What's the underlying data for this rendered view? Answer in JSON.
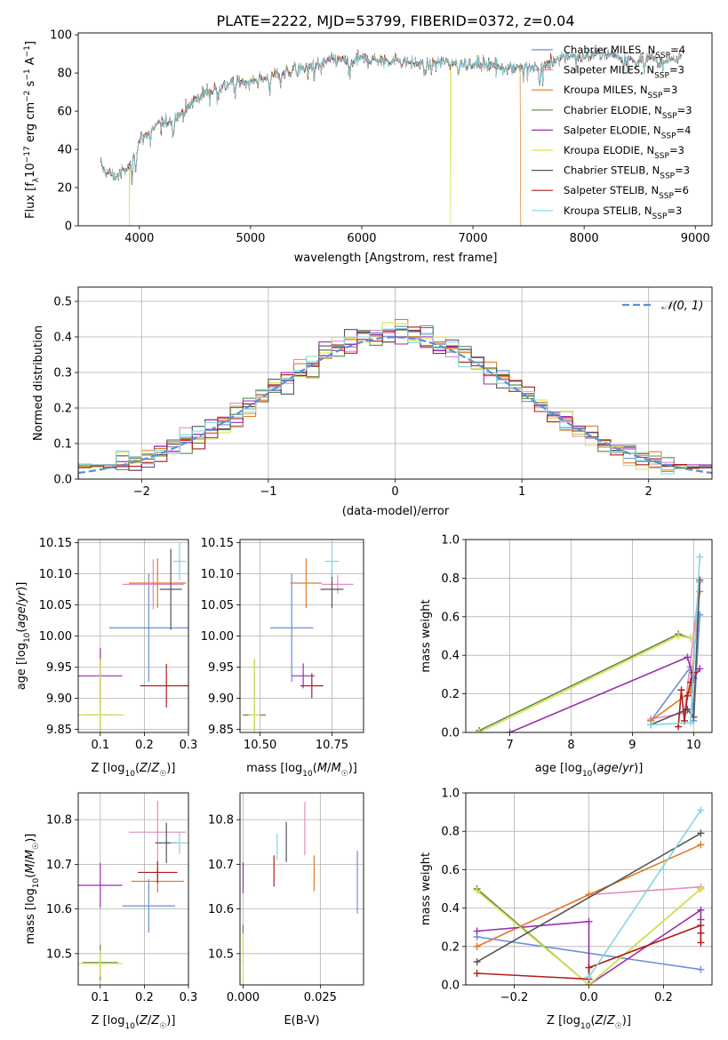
{
  "figure_title": "PLATE=2222, MJD=53799, FIBERID=0372, z=0.04",
  "colors": {
    "Chabrier MILES": "#6a8fd8",
    "Salpeter MILES": "#e68ac3",
    "Kroupa MILES": "#e07b27",
    "Chabrier ELODIE": "#5a8a4a",
    "Salpeter ELODIE": "#9a2fae",
    "Kroupa ELODIE": "#d9e34a",
    "Chabrier STELIB": "#555555",
    "Salpeter STELIB": "#b01c1c",
    "Kroupa STELIB": "#7fd8de"
  },
  "chart_data": [
    {
      "id": "spectrum",
      "type": "line",
      "title": "PLATE=2222, MJD=53799, FIBERID=0372, z=0.04",
      "xlabel": "wavelength [Angstrom, rest frame]",
      "ylabel": "Flux [f_λ 10^-17 erg cm^-2 s^-1 A^-1]",
      "xlim": [
        3450,
        9150
      ],
      "ylim": [
        0,
        101
      ],
      "xticks": [
        4000,
        5000,
        6000,
        7000,
        8000,
        9000
      ],
      "yticks": [
        0,
        20,
        40,
        60,
        80,
        100
      ],
      "legend_position": "right",
      "legend": [
        "Chabrier MILES, N_SSP=4",
        "Salpeter MILES, N_SSP=3",
        "Kroupa MILES, N_SSP=3",
        "Chabrier ELODIE, N_SSP=3",
        "Salpeter ELODIE, N_SSP=4",
        "Kroupa ELODIE, N_SSP=3",
        "Chabrier STELIB, N_SSP=3",
        "Salpeter STELIB, N_SSP=6",
        "Kroupa STELIB, N_SSP=3"
      ],
      "continuum": {
        "x": [
          3650,
          3700,
          3800,
          3900,
          3950,
          4000,
          4100,
          4200,
          4300,
          4400,
          4500,
          4600,
          4700,
          4800,
          4900,
          5000,
          5100,
          5200,
          5300,
          5400,
          5500,
          5600,
          5700,
          5800,
          5900,
          6000,
          6100,
          6200,
          6300,
          6400,
          6500,
          6600,
          6700,
          6800,
          6900,
          7000,
          7100,
          7200,
          7300,
          7400,
          7500,
          7600,
          7700,
          7800,
          7900,
          8000,
          8100,
          8200,
          8300,
          8400,
          8500,
          8600,
          8700,
          8800,
          8900
        ],
        "y": [
          32,
          28,
          26,
          30,
          38,
          45,
          50,
          54,
          56,
          60,
          66,
          70,
          72,
          74,
          76,
          75,
          77,
          79,
          80,
          82,
          83,
          84,
          86,
          87,
          86,
          88,
          87,
          86,
          87,
          86,
          85,
          84,
          86,
          85,
          86,
          84,
          85,
          84,
          83,
          84,
          82,
          83,
          86,
          88,
          89,
          88,
          90,
          91,
          89,
          87,
          86,
          88,
          87,
          88,
          87
        ]
      },
      "drops_to_zero": [
        {
          "model": "Kroupa ELODIE",
          "x": 3910
        },
        {
          "model": "Kroupa ELODIE",
          "x": 6800
        },
        {
          "model": "Kroupa MILES",
          "x": 7430
        }
      ],
      "spectrum_end": {
        "x": 9150
      }
    },
    {
      "id": "residuals",
      "type": "histogram",
      "xlabel": "(data-model)/error",
      "ylabel": "Normed distribution",
      "xlim": [
        -2.5,
        2.5
      ],
      "ylim": [
        0,
        0.54
      ],
      "xticks": [
        -2,
        -1,
        0,
        1,
        2
      ],
      "yticks": [
        0.0,
        0.1,
        0.2,
        0.3,
        0.4,
        0.5
      ],
      "grid": true,
      "legend": "𝒩(0, 1)",
      "legend_position": "top-right",
      "reference_curve": "standard normal pdf (dashed)",
      "bins": [
        -2.5,
        2.5,
        50
      ]
    },
    {
      "id": "age_vs_Z",
      "type": "errorbar",
      "xlabel": "Z [log10(Z/Z☉)]",
      "ylabel": "age  [log10(age/yr)]",
      "xlim": [
        0.05,
        0.3
      ],
      "ylim": [
        9.845,
        10.155
      ],
      "xticks": [
        0.1,
        0.2,
        0.3
      ],
      "yticks": [
        9.85,
        9.9,
        9.95,
        10.0,
        10.05,
        10.1,
        10.15
      ],
      "grid": true,
      "points": [
        {
          "model": "Chabrier MILES",
          "x": 0.21,
          "y": 10.013,
          "xerr": 0.09,
          "yerr": 0.087
        },
        {
          "model": "Salpeter MILES",
          "x": 0.22,
          "y": 10.083,
          "xerr": 0.07,
          "yerr": 0.04
        },
        {
          "model": "Kroupa MILES",
          "x": 0.23,
          "y": 10.085,
          "xerr": 0.065,
          "yerr": 0.04
        },
        {
          "model": "Chabrier ELODIE",
          "x": 0.1,
          "y": 9.873,
          "xerr": 0.04,
          "yerr": 0.09
        },
        {
          "model": "Salpeter ELODIE",
          "x": 0.1,
          "y": 9.936,
          "xerr": 0.05,
          "yerr": 0.045
        },
        {
          "model": "Kroupa ELODIE",
          "x": 0.1,
          "y": 9.873,
          "xerr": 0.055,
          "yerr": 0.09
        },
        {
          "model": "Chabrier STELIB",
          "x": 0.26,
          "y": 10.075,
          "xerr": 0.025,
          "yerr": 0.065
        },
        {
          "model": "Salpeter STELIB",
          "x": 0.25,
          "y": 9.92,
          "xerr": 0.06,
          "yerr": 0.035
        },
        {
          "model": "Kroupa STELIB",
          "x": 0.28,
          "y": 10.12,
          "xerr": 0.015,
          "yerr": 0.03
        }
      ]
    },
    {
      "id": "age_vs_mass",
      "type": "errorbar",
      "xlabel": "mass [log10(M/M☉)]",
      "ylabel": "",
      "xlim": [
        10.43,
        10.86
      ],
      "ylim": [
        9.845,
        10.155
      ],
      "xticks": [
        10.5,
        10.75
      ],
      "yticks": [
        9.85,
        9.9,
        9.95,
        10.0,
        10.05,
        10.1,
        10.15
      ],
      "grid": true,
      "points": [
        {
          "model": "Chabrier MILES",
          "x": 10.61,
          "y": 10.013,
          "xerr": 0.075,
          "yerr": 0.087
        },
        {
          "model": "Salpeter MILES",
          "x": 10.77,
          "y": 10.083,
          "xerr": 0.055,
          "yerr": 0.015
        },
        {
          "model": "Kroupa MILES",
          "x": 10.66,
          "y": 10.085,
          "xerr": 0.055,
          "yerr": 0.04
        },
        {
          "model": "Chabrier ELODIE",
          "x": 10.48,
          "y": 9.873,
          "xerr": 0.04,
          "yerr": 0.09
        },
        {
          "model": "Salpeter ELODIE",
          "x": 10.65,
          "y": 9.936,
          "xerr": 0.04,
          "yerr": 0.02
        },
        {
          "model": "Kroupa ELODIE",
          "x": 10.48,
          "y": 9.873,
          "xerr": 0.02,
          "yerr": 0.09
        },
        {
          "model": "Chabrier STELIB",
          "x": 10.75,
          "y": 10.075,
          "xerr": 0.04,
          "yerr": 0.03
        },
        {
          "model": "Salpeter STELIB",
          "x": 10.68,
          "y": 9.92,
          "xerr": 0.04,
          "yerr": 0.02
        },
        {
          "model": "Kroupa STELIB",
          "x": 10.75,
          "y": 10.12,
          "xerr": 0.025,
          "yerr": 0.025
        }
      ]
    },
    {
      "id": "weight_vs_age",
      "type": "line",
      "xlabel": "age  [log10(age/yr)]",
      "ylabel": "mass weight",
      "xlim": [
        6.28,
        10.3
      ],
      "ylim": [
        0,
        1.0
      ],
      "xticks": [
        7,
        8,
        9,
        10
      ],
      "yticks": [
        0.0,
        0.2,
        0.4,
        0.6,
        0.8,
        1.0
      ],
      "grid": true,
      "series": [
        {
          "name": "Chabrier MILES",
          "x": [
            9.3,
            9.95,
            10.0,
            10.1
          ],
          "y": [
            0.06,
            0.34,
            0.06,
            0.61
          ]
        },
        {
          "name": "Salpeter MILES",
          "x": [
            9.3,
            9.85,
            10.1
          ],
          "y": [
            0.07,
            0.1,
            0.78
          ]
        },
        {
          "name": "Kroupa MILES",
          "x": [
            9.3,
            9.95,
            10.1
          ],
          "y": [
            0.06,
            0.21,
            0.73
          ]
        },
        {
          "name": "Chabrier ELODIE",
          "x": [
            6.5,
            9.75,
            9.95
          ],
          "y": [
            0.01,
            0.51,
            0.49
          ]
        },
        {
          "name": "Salpeter ELODIE",
          "x": [
            7.0,
            9.9,
            10.0,
            10.1
          ],
          "y": [
            0.0,
            0.39,
            0.28,
            0.33
          ]
        },
        {
          "name": "Kroupa ELODIE",
          "x": [
            6.5,
            9.75,
            9.95
          ],
          "y": [
            0.0,
            0.5,
            0.49
          ]
        },
        {
          "name": "Chabrier STELIB",
          "x": [
            9.3,
            9.9,
            10.0,
            10.1
          ],
          "y": [
            0.04,
            0.12,
            0.08,
            0.79
          ]
        },
        {
          "name": "Salpeter STELIB",
          "x": [
            9.75,
            9.8,
            9.85,
            9.9,
            9.95,
            10.0
          ],
          "y": [
            0.03,
            0.22,
            0.06,
            0.19,
            0.26,
            0.31
          ]
        },
        {
          "name": "Kroupa STELIB",
          "x": [
            9.3,
            9.95,
            10.1
          ],
          "y": [
            0.04,
            0.05,
            0.91
          ]
        }
      ]
    },
    {
      "id": "mass_vs_Z",
      "type": "errorbar",
      "xlabel": "Z [log10(Z/Z☉)]",
      "ylabel": "mass [log10(M/M☉)]",
      "xlim": [
        0.05,
        0.3
      ],
      "ylim": [
        10.43,
        10.86
      ],
      "xticks": [
        0.1,
        0.2,
        0.3
      ],
      "yticks": [
        10.5,
        10.6,
        10.7,
        10.8
      ],
      "grid": true,
      "points": [
        {
          "model": "Chabrier MILES",
          "x": 0.21,
          "y": 10.607,
          "xerr": 0.06,
          "yerr": 0.06
        },
        {
          "model": "Salpeter MILES",
          "x": 0.23,
          "y": 10.772,
          "xerr": 0.065,
          "yerr": 0.07
        },
        {
          "model": "Kroupa MILES",
          "x": 0.23,
          "y": 10.662,
          "xerr": 0.06,
          "yerr": 0.025
        },
        {
          "model": "Chabrier ELODIE",
          "x": 0.1,
          "y": 10.48,
          "xerr": 0.04,
          "yerr": 0.04
        },
        {
          "model": "Salpeter ELODIE",
          "x": 0.1,
          "y": 10.653,
          "xerr": 0.05,
          "yerr": 0.05
        },
        {
          "model": "Kroupa ELODIE",
          "x": 0.1,
          "y": 10.478,
          "xerr": 0.05,
          "yerr": 0.03
        },
        {
          "model": "Chabrier STELIB",
          "x": 0.25,
          "y": 10.748,
          "xerr": 0.025,
          "yerr": 0.045
        },
        {
          "model": "Salpeter STELIB",
          "x": 0.23,
          "y": 10.682,
          "xerr": 0.045,
          "yerr": 0.025
        },
        {
          "model": "Kroupa STELIB",
          "x": 0.28,
          "y": 10.748,
          "xerr": 0.02,
          "yerr": 0.025
        }
      ]
    },
    {
      "id": "mass_vs_EBV",
      "type": "errorbar",
      "xlabel": "E(B-V)",
      "ylabel": "",
      "xlim": [
        -0.001,
        0.039
      ],
      "ylim": [
        10.43,
        10.86
      ],
      "xticks": [
        0.0,
        0.025
      ],
      "yticks": [
        10.5,
        10.6,
        10.7,
        10.8
      ],
      "grid": true,
      "points": [
        {
          "model": "Chabrier MILES",
          "x": 0.037,
          "y": 10.66,
          "yerr": 0.07
        },
        {
          "model": "Salpeter MILES",
          "x": 0.02,
          "y": 10.78,
          "yerr": 0.06
        },
        {
          "model": "Kroupa MILES",
          "x": 0.023,
          "y": 10.68,
          "yerr": 0.04
        },
        {
          "model": "Chabrier ELODIE",
          "x": 0.0,
          "y": 10.52,
          "yerr": 0.045
        },
        {
          "model": "Salpeter ELODIE",
          "x": 0.0,
          "y": 10.67,
          "yerr": 0.035
        },
        {
          "model": "Kroupa ELODIE",
          "x": 0.0,
          "y": 10.49,
          "yerr": 0.055
        },
        {
          "model": "Chabrier STELIB",
          "x": 0.014,
          "y": 10.75,
          "yerr": 0.045
        },
        {
          "model": "Salpeter STELIB",
          "x": 0.01,
          "y": 10.685,
          "yerr": 0.035
        },
        {
          "model": "Kroupa STELIB",
          "x": 0.011,
          "y": 10.74,
          "yerr": 0.03
        }
      ]
    },
    {
      "id": "weight_vs_Z",
      "type": "line",
      "xlabel": "Z [log10(Z/Z☉)]",
      "ylabel": "mass weight",
      "xlim": [
        -0.33,
        0.33
      ],
      "ylim": [
        0,
        1.0
      ],
      "xticks": [
        -0.2,
        0.0,
        0.2
      ],
      "yticks": [
        0.0,
        0.2,
        0.4,
        0.6,
        0.8,
        1.0
      ],
      "grid": true,
      "series": [
        {
          "name": "Chabrier MILES",
          "x": [
            -0.3,
            0.3
          ],
          "y": [
            0.25,
            0.08
          ]
        },
        {
          "name": "Salpeter MILES",
          "x": [
            -0.3,
            0.0,
            0.3
          ],
          "y": [
            0.2,
            0.47,
            0.51
          ]
        },
        {
          "name": "Kroupa MILES",
          "x": [
            -0.3,
            0.0,
            0.3
          ],
          "y": [
            0.2,
            0.47,
            0.73
          ]
        },
        {
          "name": "Chabrier ELODIE",
          "x": [
            -0.3,
            0.0,
            0.3
          ],
          "y": [
            0.5,
            0.0,
            0.5
          ]
        },
        {
          "name": "Salpeter ELODIE",
          "x": [
            -0.3,
            0.0,
            0.0,
            0.3,
            0.3
          ],
          "y": [
            0.28,
            0.33,
            0.0,
            0.39,
            0.34
          ]
        },
        {
          "name": "Kroupa ELODIE",
          "x": [
            -0.3,
            0.0,
            0.3
          ],
          "y": [
            0.49,
            0.0,
            0.5
          ]
        },
        {
          "name": "Chabrier STELIB",
          "x": [
            -0.3,
            0.3
          ],
          "y": [
            0.12,
            0.79
          ]
        },
        {
          "name": "Salpeter STELIB",
          "x": [
            -0.3,
            0.0,
            0.0,
            0.3,
            0.3,
            0.3
          ],
          "y": [
            0.06,
            0.03,
            0.09,
            0.31,
            0.27,
            0.22
          ]
        },
        {
          "name": "Kroupa STELIB",
          "x": [
            0.0,
            0.3
          ],
          "y": [
            0.04,
            0.91
          ]
        }
      ]
    }
  ]
}
